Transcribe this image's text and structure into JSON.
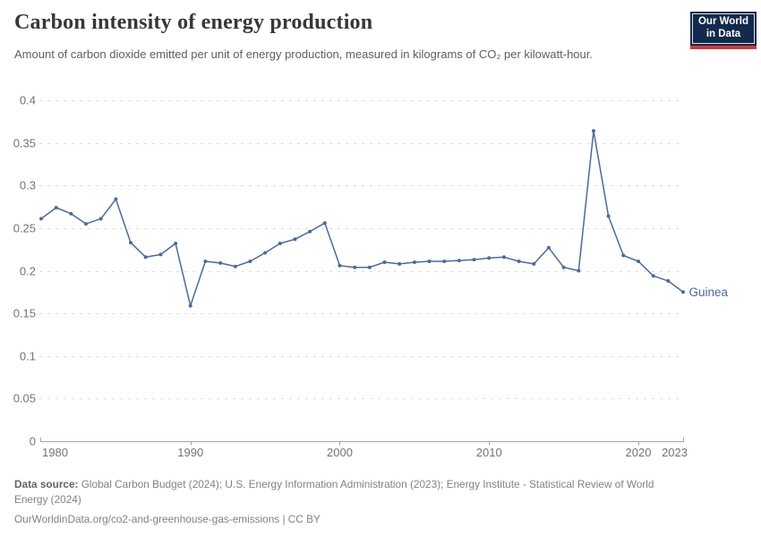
{
  "header": {
    "title": "Carbon intensity of energy production",
    "subtitle": "Amount of carbon dioxide emitted per unit of energy production, measured in kilograms of CO₂ per kilowatt-hour.",
    "logo": {
      "line1": "Our World",
      "line2": "in Data"
    }
  },
  "chart_data": {
    "type": "line",
    "title": "Carbon intensity of energy production",
    "ylabel": "",
    "xlabel": "",
    "unit": "kilograms of CO2 per kilowatt-hour",
    "ylim": [
      0,
      0.4
    ],
    "grid": "horizontal-dashed",
    "legend_position": "end-of-line-label",
    "x": [
      1980,
      1981,
      1982,
      1983,
      1984,
      1985,
      1986,
      1987,
      1988,
      1989,
      1990,
      1991,
      1992,
      1993,
      1994,
      1995,
      1996,
      1997,
      1998,
      1999,
      2000,
      2001,
      2002,
      2003,
      2004,
      2005,
      2006,
      2007,
      2008,
      2009,
      2010,
      2011,
      2012,
      2013,
      2014,
      2015,
      2016,
      2017,
      2018,
      2019,
      2020,
      2021,
      2022,
      2023
    ],
    "series": [
      {
        "name": "Guinea",
        "color": "#4c6a9c",
        "values": [
          0.261,
          0.274,
          0.267,
          0.255,
          0.261,
          0.284,
          0.233,
          0.216,
          0.219,
          0.232,
          0.159,
          0.211,
          0.209,
          0.205,
          0.211,
          0.221,
          0.232,
          0.237,
          0.246,
          0.256,
          0.206,
          0.204,
          0.204,
          0.21,
          0.208,
          0.21,
          0.211,
          0.211,
          0.212,
          0.213,
          0.215,
          0.216,
          0.211,
          0.208,
          0.227,
          0.204,
          0.2,
          0.364,
          0.264,
          0.218,
          0.211,
          0.194,
          0.188,
          0.175
        ]
      }
    ],
    "yticks": [
      {
        "value": 0,
        "label": "0"
      },
      {
        "value": 0.05,
        "label": "0.05"
      },
      {
        "value": 0.1,
        "label": "0.1"
      },
      {
        "value": 0.15,
        "label": "0.15"
      },
      {
        "value": 0.2,
        "label": "0.2"
      },
      {
        "value": 0.25,
        "label": "0.25"
      },
      {
        "value": 0.3,
        "label": "0.3"
      },
      {
        "value": 0.35,
        "label": "0.35"
      },
      {
        "value": 0.4,
        "label": "0.4"
      }
    ],
    "xticks": [
      1980,
      1990,
      2000,
      2010,
      2020,
      2023
    ]
  },
  "styles": {
    "grid_color": "#dcdcdc",
    "axis_color": "#a5a5a5",
    "tick_label_color": "#737373"
  },
  "footer": {
    "source_label": "Data source:",
    "source_line1": " Global Carbon Budget (2024); U.S. Energy Information Administration (2023); Energy Institute - Statistical Review of World",
    "source_line2": "Energy (2024)",
    "citation": "OurWorldinData.org/co2-and-greenhouse-gas-emissions | CC BY"
  }
}
